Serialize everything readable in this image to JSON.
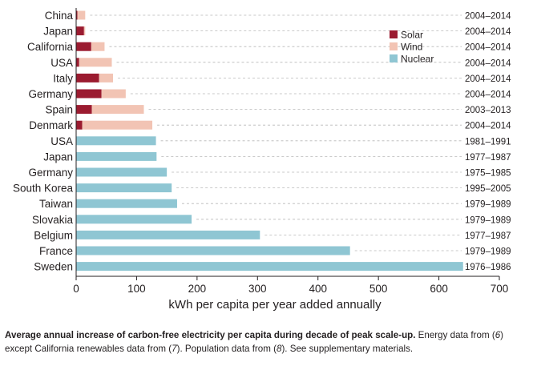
{
  "chart_data": {
    "type": "bar",
    "stacked": true,
    "orientation": "horizontal",
    "xlabel": "kWh per capita per year added annually",
    "xlim": [
      0,
      700
    ],
    "xticks": [
      0,
      100,
      200,
      300,
      400,
      500,
      600,
      700
    ],
    "legend": {
      "placement": "top-right",
      "entries": [
        "Solar",
        "Wind",
        "Nuclear"
      ]
    },
    "colors": {
      "Solar": "#9b1b30",
      "Wind": "#f2c4b4",
      "Nuclear": "#8fc6d3"
    },
    "rows": [
      {
        "label": "China",
        "period": "2004–2014",
        "solar": 2,
        "wind": 13,
        "nuclear": 0
      },
      {
        "label": "Japan",
        "period": "2004–2014",
        "solar": 13,
        "wind": 2,
        "nuclear": 0
      },
      {
        "label": "California",
        "period": "2004–2014",
        "solar": 25,
        "wind": 22,
        "nuclear": 0
      },
      {
        "label": "USA",
        "period": "2004–2014",
        "solar": 5,
        "wind": 54,
        "nuclear": 0
      },
      {
        "label": "Italy",
        "period": "2004–2014",
        "solar": 38,
        "wind": 23,
        "nuclear": 0
      },
      {
        "label": "Germany",
        "period": "2004–2014",
        "solar": 42,
        "wind": 40,
        "nuclear": 0
      },
      {
        "label": "Spain",
        "period": "2003–2013",
        "solar": 26,
        "wind": 86,
        "nuclear": 0
      },
      {
        "label": "Denmark",
        "period": "2004–2014",
        "solar": 10,
        "wind": 116,
        "nuclear": 0
      },
      {
        "label": "USA",
        "period": "1981–1991",
        "solar": 0,
        "wind": 0,
        "nuclear": 132
      },
      {
        "label": "Japan",
        "period": "1977–1987",
        "solar": 0,
        "wind": 0,
        "nuclear": 133
      },
      {
        "label": "Germany",
        "period": "1975–1985",
        "solar": 0,
        "wind": 0,
        "nuclear": 150
      },
      {
        "label": "South Korea",
        "period": "1995–2005",
        "solar": 0,
        "wind": 0,
        "nuclear": 158
      },
      {
        "label": "Taiwan",
        "period": "1979–1989",
        "solar": 0,
        "wind": 0,
        "nuclear": 167
      },
      {
        "label": "Slovakia",
        "period": "1979–1989",
        "solar": 0,
        "wind": 0,
        "nuclear": 191
      },
      {
        "label": "Belgium",
        "period": "1977–1987",
        "solar": 0,
        "wind": 0,
        "nuclear": 304
      },
      {
        "label": "France",
        "period": "1979–1989",
        "solar": 0,
        "wind": 0,
        "nuclear": 453
      },
      {
        "label": "Sweden",
        "period": "1976–1986",
        "solar": 0,
        "wind": 0,
        "nuclear": 640
      }
    ]
  },
  "caption": {
    "bold": "Average annual increase of carbon-free electricity per capita during decade of peak scale-up.",
    "part1": " Energy data from (",
    "ref1": "6",
    "part2": ") except California renewables data from (",
    "ref2": "7",
    "part3": "). Population data from (",
    "ref3": "8",
    "part4": "). See supplementary materials."
  }
}
